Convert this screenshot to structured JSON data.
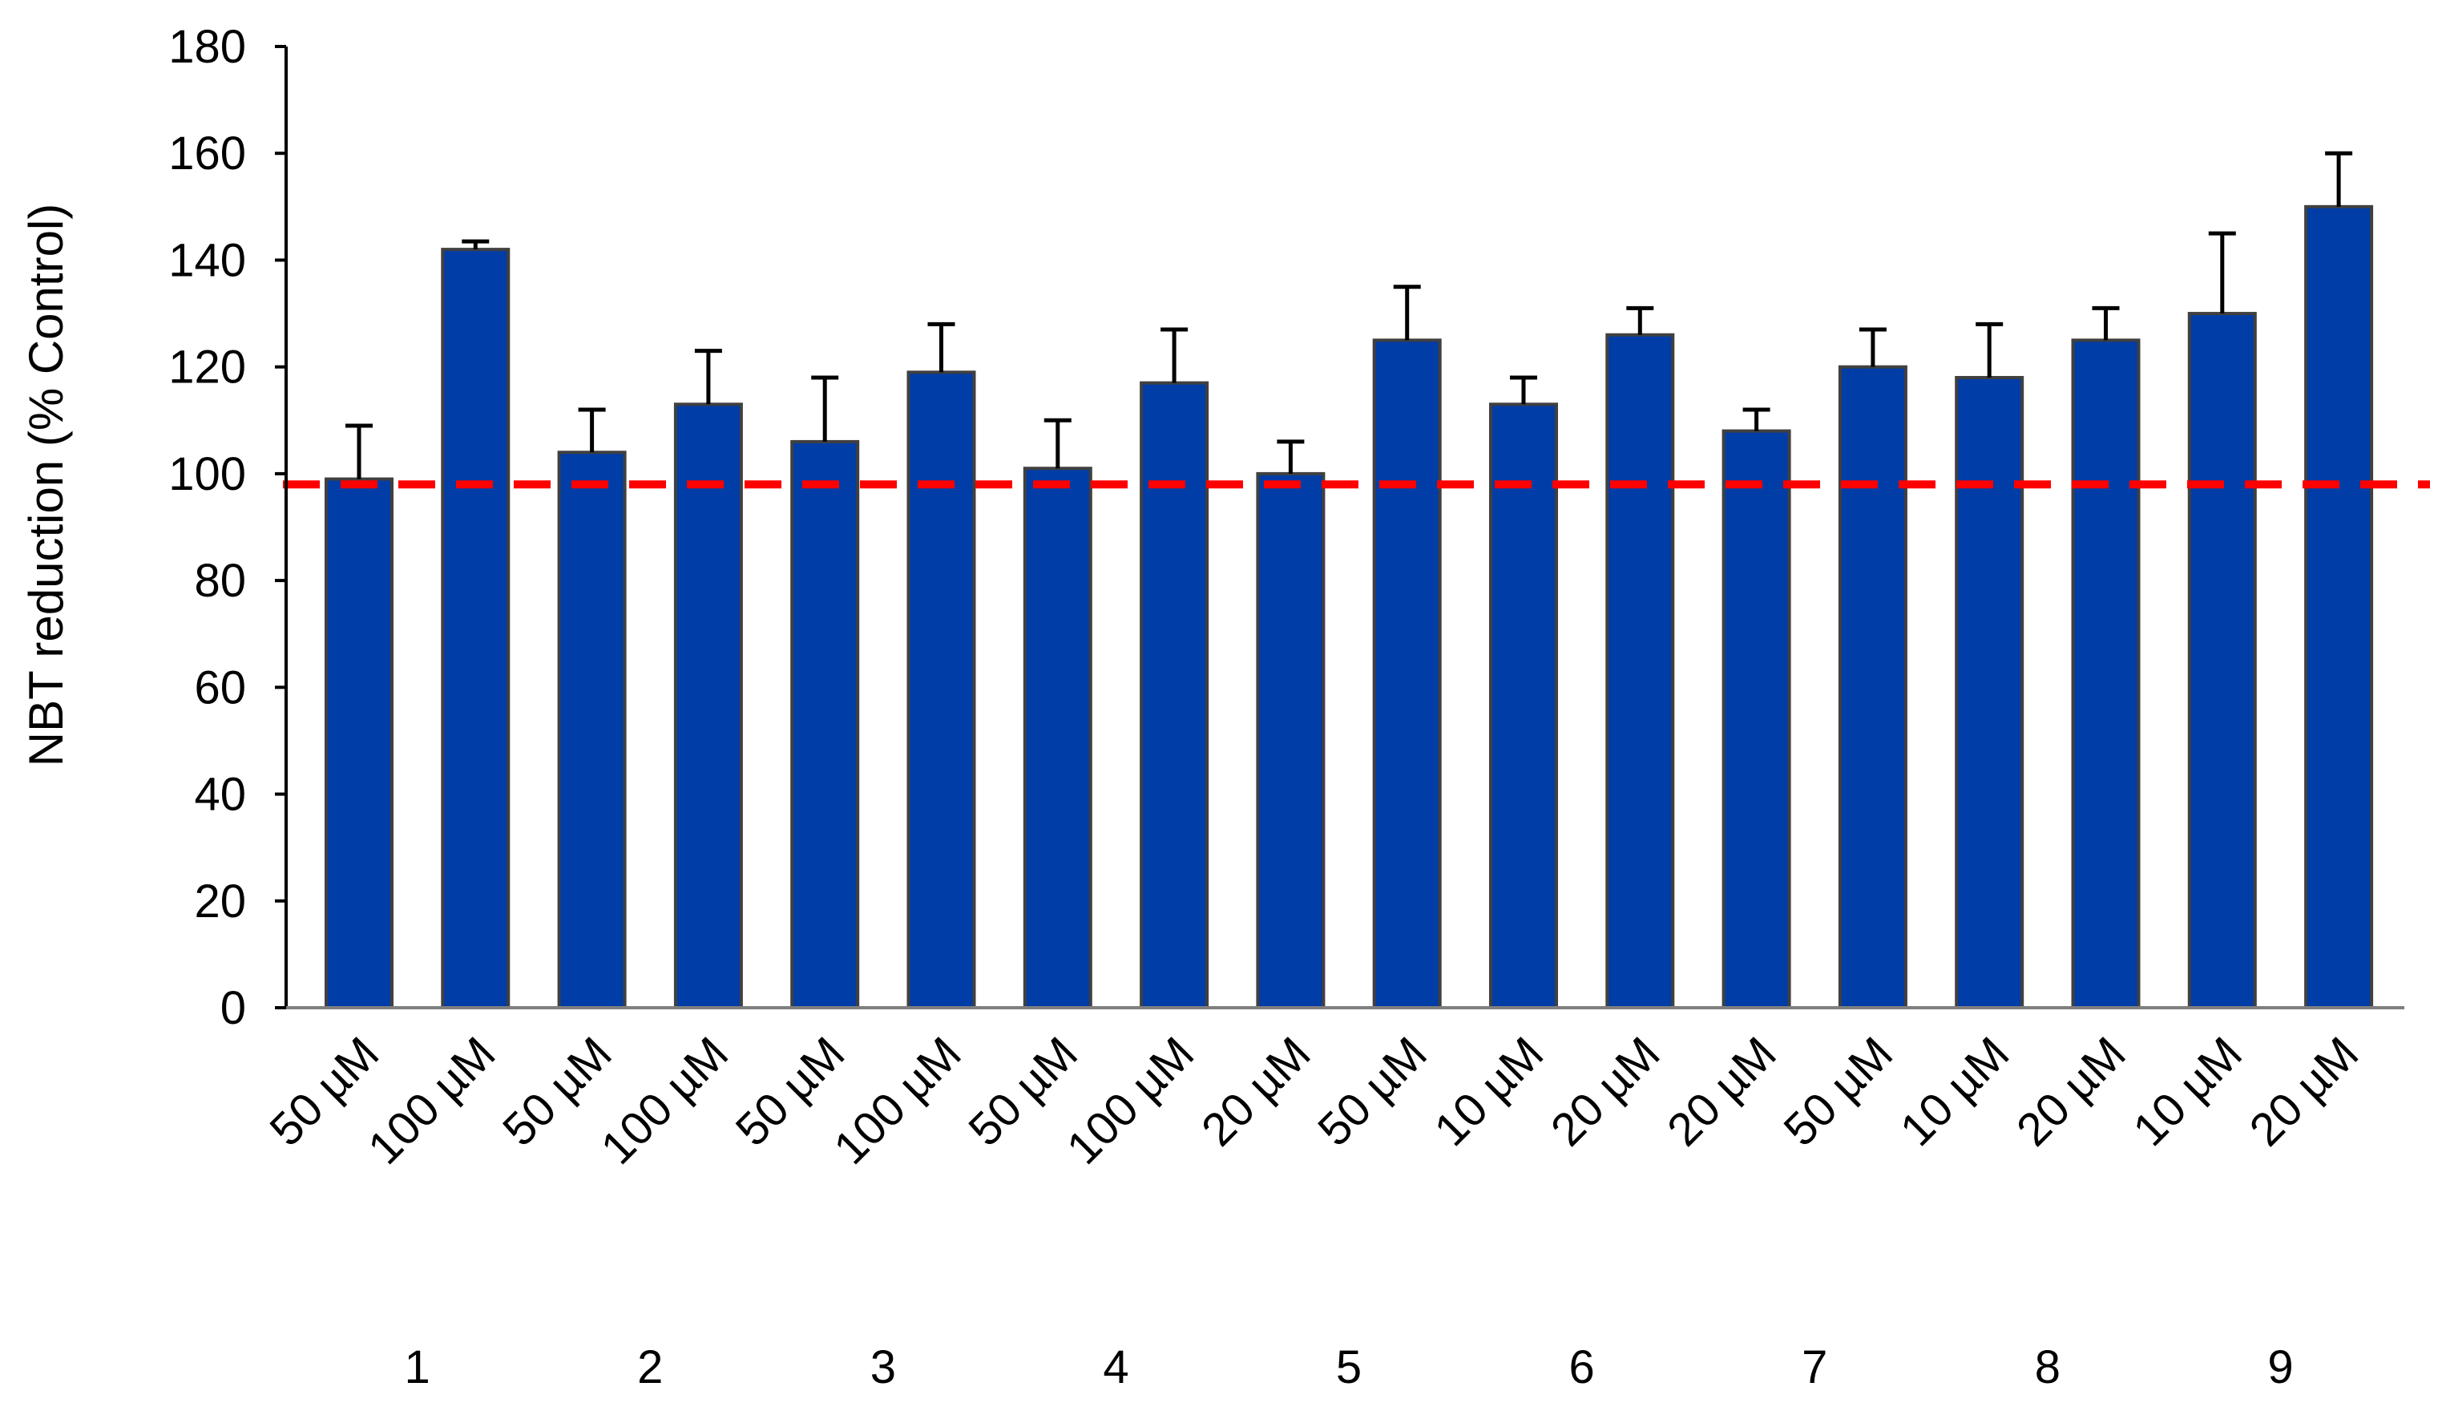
{
  "chart_data": {
    "type": "bar",
    "title": "",
    "xlabel": "",
    "ylabel": "NBT reduction (% Control)",
    "ylim": [
      0,
      180
    ],
    "yticks": [
      0,
      20,
      40,
      60,
      80,
      100,
      120,
      140,
      160,
      180
    ],
    "grid": false,
    "categories": [
      "50 µM",
      "100 µM",
      "50 µM",
      "100 µM",
      "50 µM",
      "100 µM",
      "50 µM",
      "100 µM",
      "20 µM",
      "50 µM",
      "10 µM",
      "20 µM",
      "20 µM",
      "50 µM",
      "10 µM",
      "20 µM",
      "10 µM",
      "20 µM"
    ],
    "values": [
      99,
      142,
      104,
      113,
      106,
      119,
      101,
      117,
      100,
      125,
      113,
      126,
      108,
      120,
      118,
      125,
      130,
      150
    ],
    "errors": [
      10,
      1.5,
      8,
      10,
      12,
      9,
      9,
      10,
      6,
      10,
      5,
      5,
      4,
      7,
      10,
      6,
      15,
      10
    ],
    "groups": [
      {
        "label": "1",
        "start": 0,
        "count": 2
      },
      {
        "label": "2",
        "start": 2,
        "count": 2
      },
      {
        "label": "3",
        "start": 4,
        "count": 2
      },
      {
        "label": "4",
        "start": 6,
        "count": 2
      },
      {
        "label": "5",
        "start": 8,
        "count": 2
      },
      {
        "label": "6",
        "start": 10,
        "count": 2
      },
      {
        "label": "7",
        "start": 12,
        "count": 2
      },
      {
        "label": "8",
        "start": 14,
        "count": 2
      },
      {
        "label": "9",
        "start": 16,
        "count": 2
      }
    ],
    "reference_line": {
      "value": 98,
      "color": "#ff0000",
      "style": "dashed"
    },
    "colors": {
      "bar": "#003da6",
      "bar_edge": "#404040",
      "error": "#000000",
      "axis": "#000000"
    }
  }
}
